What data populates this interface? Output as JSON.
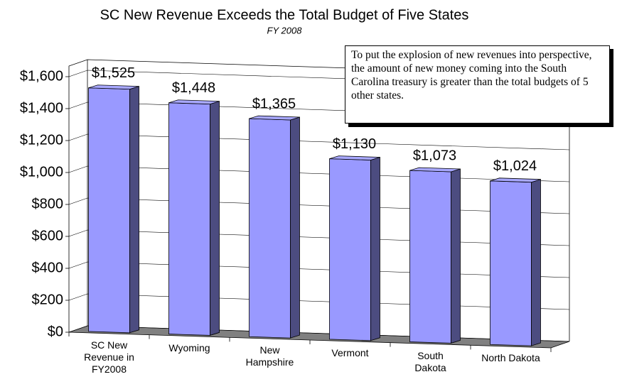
{
  "chart_data": {
    "type": "bar3d",
    "title": "SC New Revenue Exceeds the Total Budget of Five States",
    "subtitle": "FY 2008",
    "annotation": "To put the explosion of new revenues into perspective, the amount of new money coming into the South Carolina treasury is greater than the total budgets of 5 other states.",
    "categories": [
      "SC New\nRevenue in\nFY2008",
      "Wyoming",
      "New\nHampshire",
      "Vermont",
      "South\nDakota",
      "North Dakota"
    ],
    "values": [
      1525,
      1448,
      1365,
      1130,
      1073,
      1024
    ],
    "value_labels": [
      "$1,525",
      "$1,448",
      "$1,365",
      "$1,130",
      "$1,073",
      "$1,024"
    ],
    "color": "#9999ff",
    "ylim": [
      0,
      1600
    ],
    "yticks": [
      {
        "value": 0,
        "label": "$0"
      },
      {
        "value": 200,
        "label": "$200"
      },
      {
        "value": 400,
        "label": "$400"
      },
      {
        "value": 600,
        "label": "$600"
      },
      {
        "value": 800,
        "label": "$800"
      },
      {
        "value": 1000,
        "label": "$1,000"
      },
      {
        "value": 1200,
        "label": "$1,200"
      },
      {
        "value": 1400,
        "label": "$1,400"
      },
      {
        "value": 1600,
        "label": "$1,600"
      }
    ],
    "grid": true
  }
}
